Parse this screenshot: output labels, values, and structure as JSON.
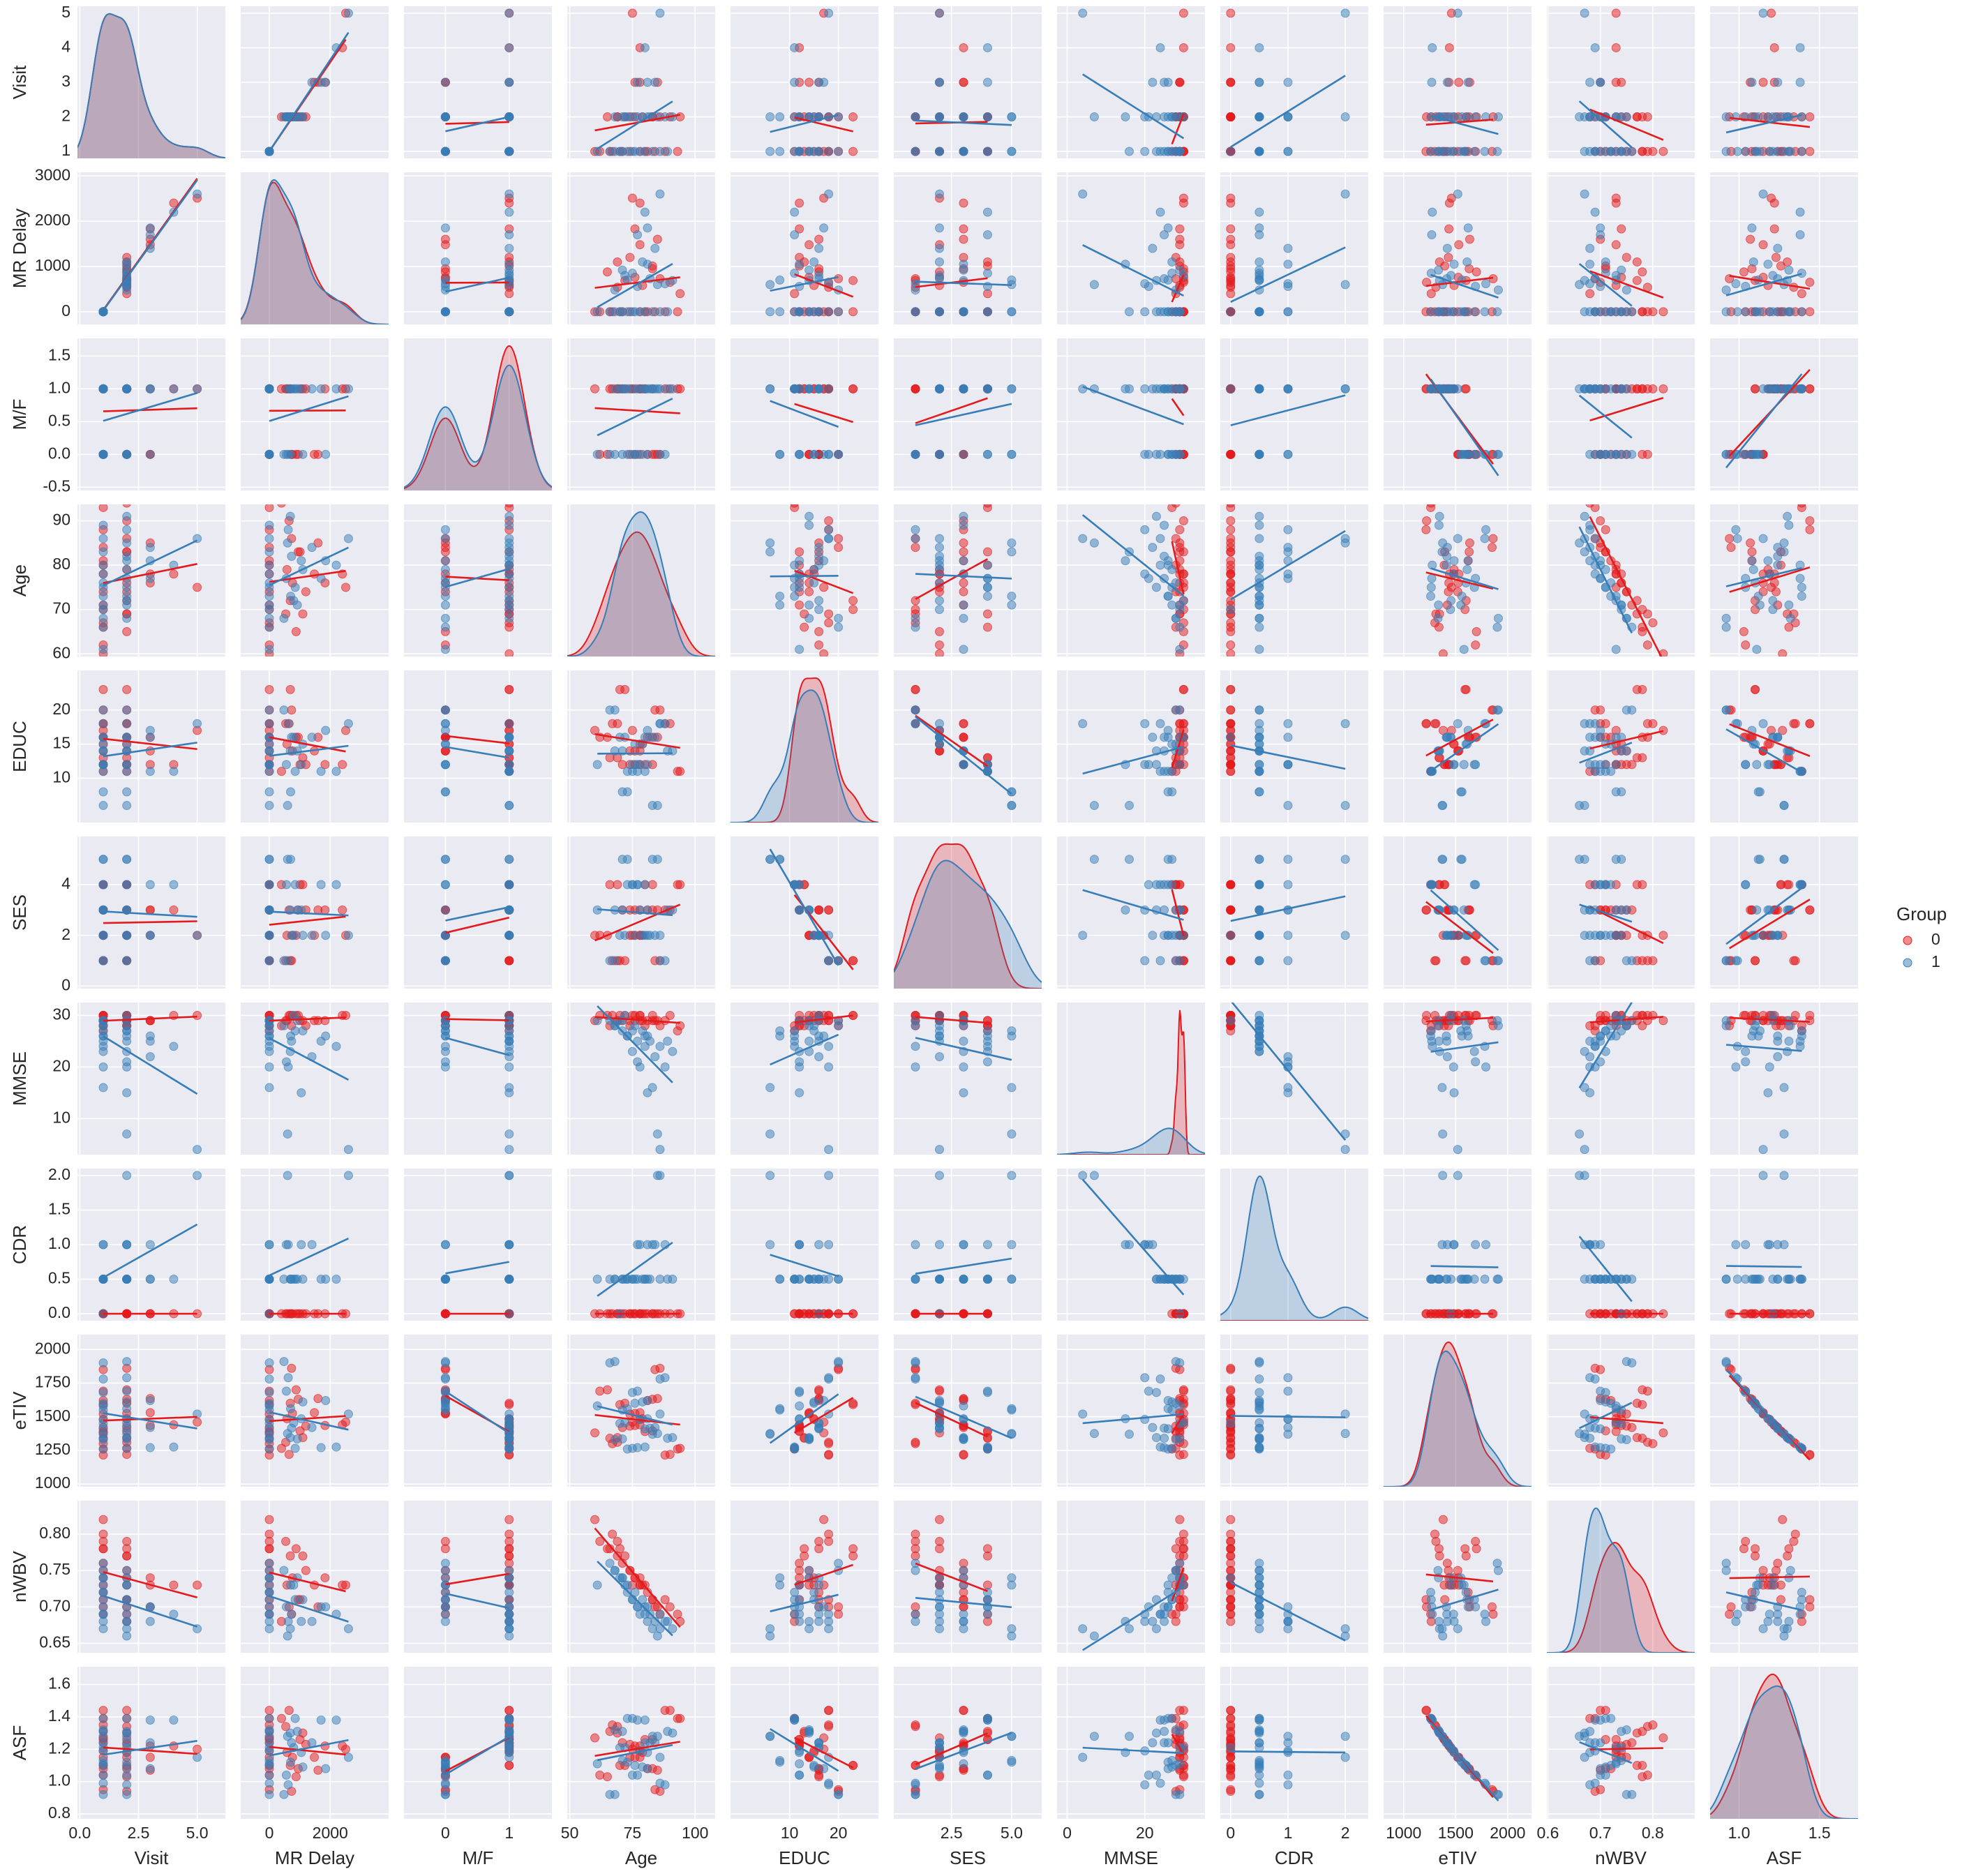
{
  "chart_data": {
    "type": "pairplot",
    "legend_title": "Group",
    "variables": [
      {
        "name": "Visit",
        "xlim": [
          -0.1,
          6.2
        ],
        "xticks": [
          {
            "value": 0,
            "label": "0.0"
          },
          {
            "value": 2.5,
            "label": "2.5"
          },
          {
            "value": 5,
            "label": "5.0"
          }
        ],
        "ylim": [
          0.8,
          5.2
        ],
        "yticks": [
          1,
          2,
          3,
          4,
          5
        ]
      },
      {
        "name": "MR Delay",
        "xlim": [
          -940,
          3920
        ],
        "xticks": [
          0,
          2000
        ],
        "ylim": [
          -280,
          3080
        ],
        "yticks": [
          0,
          1000,
          2000,
          3000
        ]
      },
      {
        "name": "M/F",
        "xlim": [
          -0.65,
          1.67
        ],
        "xticks": [
          0,
          1
        ],
        "ylim": [
          -0.55,
          1.77
        ],
        "yticks": [
          {
            "value": -0.5,
            "label": "-0.5"
          },
          {
            "value": 0,
            "label": "0.0"
          },
          {
            "value": 0.5,
            "label": "0.5"
          },
          {
            "value": 1,
            "label": "1.0"
          },
          {
            "value": 1.5,
            "label": "1.5"
          }
        ]
      },
      {
        "name": "Age",
        "xlim": [
          49,
          108
        ],
        "xticks": [
          50,
          75,
          100
        ],
        "ylim": [
          59.4,
          93.7
        ],
        "yticks": [
          60,
          70,
          80,
          90
        ]
      },
      {
        "name": "EDUC",
        "xlim": [
          -2.1,
          28.2
        ],
        "xticks": [
          10,
          20
        ],
        "ylim": [
          3.5,
          25.8
        ],
        "yticks": [
          10,
          15,
          20
        ]
      },
      {
        "name": "SES",
        "xlim": [
          0.1,
          6.25
        ],
        "xticks": [
          {
            "value": 2.5,
            "label": "2.5"
          },
          {
            "value": 5,
            "label": "5.0"
          }
        ],
        "ylim": [
          -0.1,
          5.9
        ],
        "yticks": [
          0,
          2,
          4
        ]
      },
      {
        "name": "MMSE",
        "xlim": [
          -2.6,
          35.5
        ],
        "xticks": [
          0,
          20
        ],
        "ylim": [
          3,
          32.5
        ],
        "yticks": [
          10,
          20,
          30
        ]
      },
      {
        "name": "CDR",
        "xlim": [
          -0.18,
          2.4
        ],
        "xticks": [
          0,
          1,
          2
        ],
        "ylim": [
          -0.1,
          2.1
        ],
        "yticks": [
          {
            "value": 0,
            "label": "0.0"
          },
          {
            "value": 0.5,
            "label": "0.5"
          },
          {
            "value": 1,
            "label": "1.0"
          },
          {
            "value": 1.5,
            "label": "1.5"
          },
          {
            "value": 2,
            "label": "2.0"
          }
        ]
      },
      {
        "name": "eTIV",
        "xlim": [
          807,
          2229
        ],
        "xticks": [
          1000,
          1500,
          2000
        ],
        "ylim": [
          980,
          2110
        ],
        "yticks": [
          1000,
          1250,
          1500,
          1750,
          2000
        ]
      },
      {
        "name": "nWBV",
        "xlim": [
          0.598,
          0.88
        ],
        "xticks": [
          0.6,
          0.7,
          0.8
        ],
        "ylim": [
          0.637,
          0.846
        ],
        "yticks": [
          0.65,
          {
            "value": 0.7,
            "label": "0.70"
          },
          0.75,
          {
            "value": 0.8,
            "label": "0.80"
          }
        ]
      },
      {
        "name": "ASF",
        "xlim": [
          0.82,
          1.74
        ],
        "xticks": [
          {
            "value": 1,
            "label": "1.0"
          },
          1.5
        ],
        "ylim": [
          0.77,
          1.71
        ],
        "yticks": [
          {
            "value": 0.8,
            "label": "0.8"
          },
          {
            "value": 1,
            "label": "1.0"
          },
          1.2,
          1.4,
          1.6
        ]
      }
    ],
    "series": [
      {
        "name": "0",
        "color": "#e41a1c",
        "values": [
          [
            1,
            0,
            1,
            67,
            18,
            1,
            30,
            0,
            1300,
            0.8,
            1.35
          ],
          [
            2,
            540,
            1,
            69,
            18,
            1,
            29,
            0,
            1310,
            0.79,
            1.34
          ],
          [
            1,
            0,
            0,
            74,
            14,
            2,
            29,
            0,
            1520,
            0.75,
            1.15
          ],
          [
            2,
            760,
            0,
            76,
            14,
            2,
            30,
            0,
            1525,
            0.74,
            1.15
          ],
          [
            3,
            1480,
            0,
            78,
            14,
            2,
            29,
            0,
            1530,
            0.73,
            1.15
          ],
          [
            1,
            0,
            1,
            88,
            18,
            3,
            29,
            0,
            1215,
            0.71,
            1.44
          ],
          [
            2,
            650,
            1,
            90,
            18,
            3,
            30,
            0,
            1220,
            0.7,
            1.44
          ],
          [
            1,
            0,
            1,
            80,
            12,
            4,
            28,
            0,
            1390,
            0.73,
            1.26
          ],
          [
            2,
            1010,
            1,
            83,
            12,
            4,
            29,
            0,
            1395,
            0.71,
            1.26
          ],
          [
            1,
            0,
            0,
            62,
            16,
            2,
            30,
            0,
            1690,
            0.79,
            1.04
          ],
          [
            2,
            880,
            0,
            65,
            16,
            2,
            30,
            0,
            1700,
            0.78,
            1.03
          ],
          [
            1,
            0,
            1,
            71,
            12,
            3,
            29,
            0,
            1420,
            0.76,
            1.24
          ],
          [
            2,
            1200,
            1,
            74,
            12,
            3,
            28,
            0,
            1430,
            0.75,
            1.23
          ],
          [
            3,
            1830,
            1,
            76,
            12,
            3,
            29,
            0,
            1435,
            0.74,
            1.22
          ],
          [
            4,
            2400,
            1,
            78,
            12,
            3,
            30,
            0,
            1440,
            0.73,
            1.22
          ],
          [
            1,
            0,
            1,
            78,
            15,
            2,
            30,
            0,
            1480,
            0.74,
            1.19
          ],
          [
            2,
            580,
            1,
            79,
            15,
            2,
            29,
            0,
            1485,
            0.73,
            1.18
          ],
          [
            1,
            0,
            0,
            84,
            20,
            1,
            29,
            0,
            1850,
            0.7,
            0.95
          ],
          [
            2,
            730,
            0,
            86,
            20,
            1,
            28,
            0,
            1860,
            0.69,
            0.94
          ],
          [
            1,
            0,
            1,
            70,
            23,
            1,
            30,
            0,
            1590,
            0.78,
            1.1
          ],
          [
            2,
            690,
            1,
            72,
            23,
            1,
            30,
            0,
            1600,
            0.77,
            1.1
          ],
          [
            1,
            0,
            1,
            66,
            13,
            4,
            28,
            0,
            1340,
            0.78,
            1.31
          ],
          [
            2,
            1100,
            1,
            69,
            13,
            4,
            29,
            0,
            1345,
            0.77,
            1.3
          ],
          [
            1,
            0,
            0,
            81,
            16,
            3,
            29,
            0,
            1620,
            0.72,
            1.08
          ],
          [
            2,
            950,
            0,
            83,
            16,
            3,
            30,
            0,
            1630,
            0.71,
            1.08
          ],
          [
            3,
            1600,
            0,
            85,
            16,
            3,
            29,
            0,
            1635,
            0.7,
            1.07
          ],
          [
            1,
            0,
            1,
            93,
            11,
            4,
            27,
            0,
            1260,
            0.69,
            1.39
          ],
          [
            2,
            400,
            1,
            94,
            11,
            4,
            28,
            0,
            1265,
            0.68,
            1.39
          ],
          [
            1,
            0,
            1,
            60,
            17,
            2,
            29,
            0,
            1380,
            0.82,
            1.27
          ],
          [
            5,
            2510,
            1,
            75,
            17,
            2,
            30,
            0,
            1460,
            0.73,
            1.2
          ]
        ]
      },
      {
        "name": "1",
        "color": "#377eb8",
        "values": [
          [
            1,
            0,
            0,
            75,
            12,
            4,
            23,
            0.5,
            1680,
            0.71,
            1.04
          ],
          [
            2,
            560,
            0,
            77,
            12,
            4,
            21,
            1,
            1690,
            0.7,
            1.04
          ],
          [
            1,
            0,
            1,
            80,
            16,
            2,
            26,
            0.5,
            1410,
            0.7,
            1.24
          ],
          [
            2,
            730,
            1,
            82,
            16,
            2,
            25,
            0.5,
            1415,
            0.69,
            1.24
          ],
          [
            3,
            1400,
            1,
            84,
            16,
            2,
            22,
            1,
            1420,
            0.68,
            1.24
          ],
          [
            1,
            0,
            0,
            71,
            8,
            5,
            27,
            0.5,
            1550,
            0.74,
            1.13
          ],
          [
            2,
            700,
            0,
            73,
            8,
            5,
            26,
            0.5,
            1560,
            0.73,
            1.12
          ],
          [
            1,
            0,
            1,
            68,
            14,
            3,
            28,
            0.5,
            1330,
            0.75,
            1.32
          ],
          [
            2,
            920,
            1,
            71,
            14,
            3,
            29,
            0.5,
            1335,
            0.74,
            1.31
          ],
          [
            1,
            0,
            0,
            86,
            18,
            1,
            24,
            0.5,
            1780,
            0.69,
            0.99
          ],
          [
            2,
            620,
            0,
            88,
            18,
            1,
            20,
            1,
            1790,
            0.68,
            0.98
          ],
          [
            1,
            0,
            1,
            78,
            12,
            3,
            20,
            1,
            1480,
            0.69,
            1.19
          ],
          [
            2,
            1050,
            1,
            81,
            12,
            3,
            15,
            1,
            1485,
            0.68,
            1.18
          ],
          [
            1,
            0,
            1,
            73,
            11,
            4,
            26,
            0.5,
            1260,
            0.72,
            1.39
          ],
          [
            2,
            850,
            1,
            75,
            11,
            4,
            27,
            0.5,
            1265,
            0.71,
            1.39
          ],
          [
            3,
            1700,
            1,
            77,
            11,
            4,
            25,
            0.5,
            1270,
            0.7,
            1.38
          ],
          [
            4,
            2200,
            1,
            80,
            11,
            4,
            24,
            0.5,
            1275,
            0.69,
            1.38
          ],
          [
            1,
            0,
            0,
            66,
            20,
            1,
            29,
            0.5,
            1900,
            0.76,
            0.92
          ],
          [
            2,
            480,
            0,
            68,
            20,
            1,
            28,
            0.5,
            1910,
            0.75,
            0.92
          ],
          [
            1,
            0,
            1,
            83,
            6,
            5,
            16,
            1,
            1370,
            0.67,
            1.28
          ],
          [
            2,
            600,
            1,
            85,
            6,
            5,
            7,
            2,
            1375,
            0.66,
            1.28
          ],
          [
            1,
            0,
            0,
            76,
            15,
            2,
            28,
            0.5,
            1600,
            0.72,
            1.1
          ],
          [
            2,
            1100,
            0,
            79,
            15,
            2,
            27,
            0.5,
            1610,
            0.71,
            1.09
          ],
          [
            1,
            0,
            1,
            70,
            16,
            2,
            29,
            0,
            1450,
            0.74,
            1.21
          ],
          [
            2,
            800,
            1,
            72,
            16,
            2,
            30,
            0.5,
            1455,
            0.73,
            1.21
          ],
          [
            1,
            0,
            1,
            89,
            14,
            3,
            25,
            0.5,
            1340,
            0.68,
            1.31
          ],
          [
            2,
            690,
            1,
            91,
            14,
            3,
            23,
            0.5,
            1345,
            0.67,
            1.3
          ],
          [
            1,
            0,
            0,
            61,
            12,
            3,
            29,
            0.5,
            1580,
            0.73,
            1.11
          ],
          [
            3,
            1850,
            0,
            81,
            17,
            2,
            26,
            0.5,
            1620,
            0.7,
            1.08
          ],
          [
            5,
            2600,
            1,
            86,
            18,
            2,
            4,
            2,
            1520,
            0.67,
            1.15
          ]
        ]
      }
    ]
  }
}
